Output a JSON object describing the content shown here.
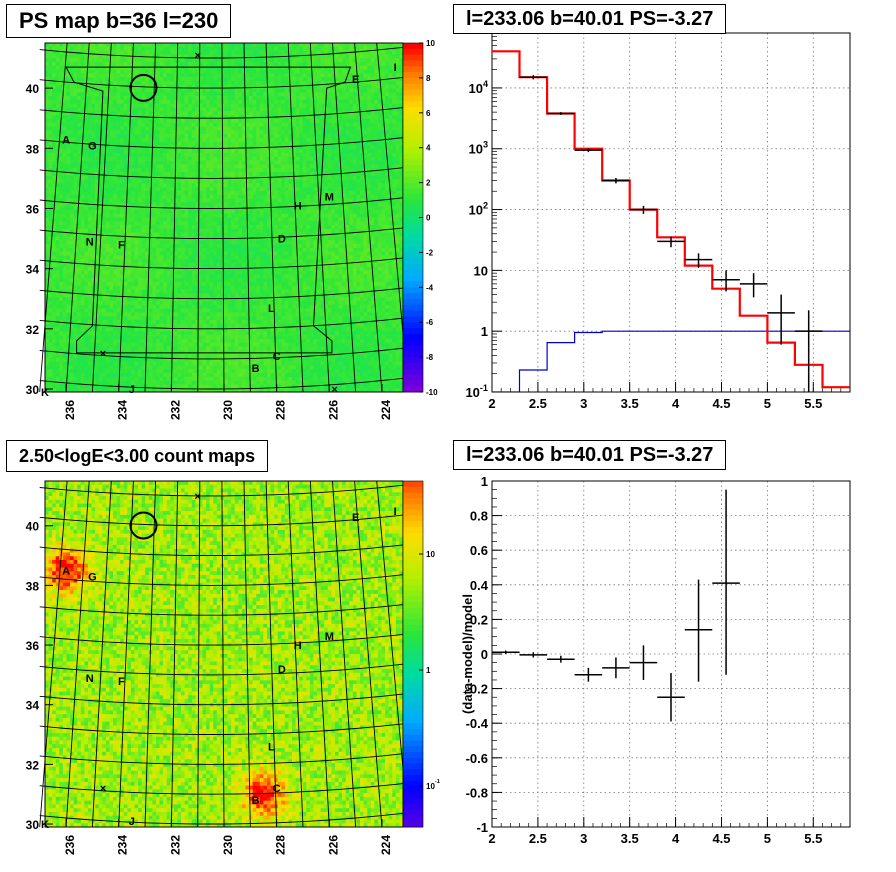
{
  "titles": {
    "top_left": "PS map b=36 l=230",
    "top_right": "l=233.06 b=40.01 PS=-3.27",
    "bottom_left": "2.50<logE<3.00 count maps",
    "bottom_right": "l=233.06 b=40.01 PS=-3.27"
  },
  "colors": {
    "model": "#ff0000",
    "data": "#000000",
    "blue_line": "#0000cc",
    "grid": "#888888"
  },
  "chart_data": [
    {
      "type": "heatmap",
      "title": "PS map b=36 l=230",
      "xlabel": "",
      "ylabel": "",
      "x_ticks": [
        "236",
        "234",
        "232",
        "230",
        "228",
        "226",
        "224"
      ],
      "y_ticks": [
        "30",
        "32",
        "34",
        "36",
        "38",
        "40"
      ],
      "xlim": [
        236.8,
        223.2
      ],
      "ylim": [
        29.9,
        41.5
      ],
      "colorbar": {
        "min": -10,
        "max": 10,
        "ticks": [
          "10",
          "8",
          "6",
          "4",
          "2",
          "0",
          "-2",
          "-4",
          "-6",
          "-8",
          "-10"
        ]
      },
      "dominant_value": 1,
      "labels": [
        {
          "text": "A",
          "l": 236.0,
          "b": 38.3
        },
        {
          "text": "G",
          "l": 235.0,
          "b": 38.1
        },
        {
          "text": "E",
          "l": 225.0,
          "b": 40.3
        },
        {
          "text": "I",
          "l": 223.5,
          "b": 40.7
        },
        {
          "text": "H",
          "l": 227.2,
          "b": 36.1
        },
        {
          "text": "M",
          "l": 226.0,
          "b": 36.4
        },
        {
          "text": "D",
          "l": 227.8,
          "b": 35.0
        },
        {
          "text": "N",
          "l": 235.1,
          "b": 34.9
        },
        {
          "text": "F",
          "l": 233.9,
          "b": 34.8
        },
        {
          "text": "L",
          "l": 228.2,
          "b": 32.7
        },
        {
          "text": "C",
          "l": 228.0,
          "b": 31.1
        },
        {
          "text": "B",
          "l": 228.8,
          "b": 30.7
        },
        {
          "text": "K",
          "l": 236.8,
          "b": 29.9
        },
        {
          "text": "J",
          "l": 233.5,
          "b": 30.0
        }
      ],
      "circle": {
        "l": 233.06,
        "b": 40.01
      },
      "markers": [
        {
          "l": 231.0,
          "b": 41.1
        },
        {
          "l": 234.6,
          "b": 31.2
        },
        {
          "l": 225.8,
          "b": 30.0
        }
      ]
    },
    {
      "type": "line",
      "title": "l=233.06 b=40.01 PS=-3.27",
      "xlabel": "",
      "ylabel": "",
      "x_ticks": [
        "2",
        "2.5",
        "3",
        "3.5",
        "4",
        "4.5",
        "5",
        "5.5"
      ],
      "y_ticks": [
        "10^-1",
        "1",
        "10",
        "10^2",
        "10^3",
        "10^4"
      ],
      "log_y": true,
      "xlim": [
        2.0,
        5.9
      ],
      "ylim": [
        0.1,
        80000
      ],
      "bin_edges": [
        2.0,
        2.3,
        2.6,
        2.9,
        3.2,
        3.5,
        3.8,
        4.1,
        4.4,
        4.7,
        5.0,
        5.3,
        5.6,
        5.9
      ],
      "model": [
        40000,
        15000,
        3800,
        1000,
        300,
        100,
        35,
        12,
        5,
        1.8,
        0.65,
        0.28,
        0.12
      ],
      "blue": [
        0.1,
        0.23,
        0.65,
        0.95,
        1.0,
        1.0,
        1.0,
        1.0,
        1.0,
        1.0,
        1.0,
        1.0,
        1.0
      ],
      "data": [
        {
          "x": 2.45,
          "xerr": 0.15,
          "y": 15000,
          "ylo": 13800,
          "yhi": 16200
        },
        {
          "x": 2.75,
          "xerr": 0.15,
          "y": 3800,
          "ylo": 3600,
          "yhi": 4000
        },
        {
          "x": 3.05,
          "xerr": 0.15,
          "y": 950,
          "ylo": 880,
          "yhi": 1020
        },
        {
          "x": 3.35,
          "xerr": 0.15,
          "y": 300,
          "ylo": 270,
          "yhi": 330
        },
        {
          "x": 3.65,
          "xerr": 0.15,
          "y": 100,
          "ylo": 85,
          "yhi": 115
        },
        {
          "x": 3.95,
          "xerr": 0.15,
          "y": 30,
          "ylo": 24,
          "yhi": 36
        },
        {
          "x": 4.25,
          "xerr": 0.15,
          "y": 15,
          "ylo": 11,
          "yhi": 19
        },
        {
          "x": 4.55,
          "xerr": 0.15,
          "y": 7,
          "ylo": 4.5,
          "yhi": 10
        },
        {
          "x": 4.85,
          "xerr": 0.15,
          "y": 6,
          "ylo": 3.6,
          "yhi": 9
        },
        {
          "x": 5.15,
          "xerr": 0.15,
          "y": 2,
          "ylo": 0.6,
          "yhi": 4
        },
        {
          "x": 5.45,
          "xerr": 0.15,
          "y": 1,
          "ylo": 0.1,
          "yhi": 2.2
        }
      ]
    },
    {
      "type": "heatmap",
      "title": "2.50<logE<3.00 count maps",
      "xlabel": "",
      "ylabel": "",
      "x_ticks": [
        "236",
        "234",
        "232",
        "230",
        "228",
        "226",
        "224"
      ],
      "y_ticks": [
        "30",
        "32",
        "34",
        "36",
        "38",
        "40"
      ],
      "xlim": [
        236.8,
        223.2
      ],
      "ylim": [
        29.9,
        41.5
      ],
      "log_colorbar": true,
      "colorbar": {
        "ticks": [
          "10",
          "1",
          "10^-1"
        ]
      },
      "hotspots": [
        {
          "l": 236.0,
          "b": 38.5
        },
        {
          "l": 228.5,
          "b": 31.0
        }
      ],
      "labels": [
        {
          "text": "A",
          "l": 236.0,
          "b": 38.5
        },
        {
          "text": "G",
          "l": 235.0,
          "b": 38.3
        },
        {
          "text": "E",
          "l": 225.0,
          "b": 40.3
        },
        {
          "text": "I",
          "l": 223.5,
          "b": 40.5
        },
        {
          "text": "H",
          "l": 227.2,
          "b": 36.0
        },
        {
          "text": "M",
          "l": 226.0,
          "b": 36.3
        },
        {
          "text": "D",
          "l": 227.8,
          "b": 35.2
        },
        {
          "text": "N",
          "l": 235.1,
          "b": 34.9
        },
        {
          "text": "F",
          "l": 233.9,
          "b": 34.8
        },
        {
          "text": "L",
          "l": 228.2,
          "b": 32.6
        },
        {
          "text": "C",
          "l": 228.0,
          "b": 31.2
        },
        {
          "text": "B",
          "l": 228.8,
          "b": 30.8
        },
        {
          "text": "K",
          "l": 236.8,
          "b": 30.0
        },
        {
          "text": "J",
          "l": 233.5,
          "b": 30.1
        }
      ],
      "circle": {
        "l": 233.06,
        "b": 40.01
      },
      "markers": [
        {
          "l": 231.0,
          "b": 41.0
        },
        {
          "l": 234.6,
          "b": 31.2
        }
      ]
    },
    {
      "type": "scatter",
      "title": "l=233.06 b=40.01 PS=-3.27",
      "xlabel": "",
      "ylabel": "(data-model)/model",
      "x_ticks": [
        "2",
        "2.5",
        "3",
        "3.5",
        "4",
        "4.5",
        "5",
        "5.5"
      ],
      "y_ticks": [
        "-1",
        "-0.8",
        "-0.6",
        "-0.4",
        "-0.2",
        "0",
        "0.2",
        "0.4",
        "0.6",
        "0.8",
        "1"
      ],
      "xlim": [
        2.0,
        5.9
      ],
      "ylim": [
        -1,
        1
      ],
      "data": [
        {
          "x": 2.15,
          "xerr": 0.15,
          "y": 0.01,
          "ylo": 0.0,
          "yhi": 0.02
        },
        {
          "x": 2.45,
          "xerr": 0.15,
          "y": -0.005,
          "ylo": -0.02,
          "yhi": 0.01
        },
        {
          "x": 2.75,
          "xerr": 0.15,
          "y": -0.03,
          "ylo": -0.05,
          "yhi": -0.01
        },
        {
          "x": 3.05,
          "xerr": 0.15,
          "y": -0.12,
          "ylo": -0.16,
          "yhi": -0.08
        },
        {
          "x": 3.35,
          "xerr": 0.15,
          "y": -0.08,
          "ylo": -0.14,
          "yhi": -0.02
        },
        {
          "x": 3.65,
          "xerr": 0.15,
          "y": -0.05,
          "ylo": -0.15,
          "yhi": 0.05
        },
        {
          "x": 3.95,
          "xerr": 0.15,
          "y": -0.25,
          "ylo": -0.39,
          "yhi": -0.11
        },
        {
          "x": 4.25,
          "xerr": 0.15,
          "y": 0.14,
          "ylo": -0.16,
          "yhi": 0.43
        },
        {
          "x": 4.55,
          "xerr": 0.15,
          "y": 0.41,
          "ylo": -0.12,
          "yhi": 0.95
        }
      ]
    }
  ]
}
